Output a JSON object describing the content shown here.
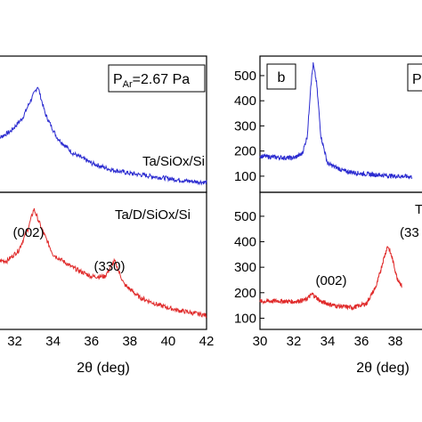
{
  "chart_data": [
    {
      "type": "line",
      "x_label": "2θ (deg)",
      "x_range": [
        31,
        42
      ],
      "x_tick_labels": [
        "32",
        "34",
        "36",
        "38",
        "40",
        "42"
      ],
      "header_box": {
        "main": "P",
        "sub": "Ar",
        "rest": "=2.67 Pa"
      },
      "upper_panel": {
        "series_name": "Ta/SiOx/Si",
        "color": "#2b2bd0",
        "y_range": [
          0,
          1
        ],
        "points": [
          [
            31.0,
            0.38
          ],
          [
            31.8,
            0.45
          ],
          [
            32.4,
            0.55
          ],
          [
            32.8,
            0.68
          ],
          [
            33.2,
            0.8
          ],
          [
            33.6,
            0.58
          ],
          [
            34.2,
            0.4
          ],
          [
            35.0,
            0.28
          ],
          [
            36.0,
            0.2
          ],
          [
            37.0,
            0.15
          ],
          [
            38.0,
            0.12
          ],
          [
            39.0,
            0.1
          ],
          [
            40.0,
            0.08
          ],
          [
            41.0,
            0.06
          ],
          [
            42.0,
            0.05
          ]
        ]
      },
      "lower_panel": {
        "series_name": "Ta/D/SiOx/Si",
        "color": "#e02a2a",
        "y_range": [
          0,
          1
        ],
        "annotations": [
          {
            "text": "(002)"
          },
          {
            "text": "(330)"
          }
        ],
        "points": [
          [
            31.0,
            0.5
          ],
          [
            31.6,
            0.5
          ],
          [
            32.2,
            0.58
          ],
          [
            32.7,
            0.75
          ],
          [
            33.0,
            0.9
          ],
          [
            33.4,
            0.75
          ],
          [
            34.0,
            0.55
          ],
          [
            35.0,
            0.45
          ],
          [
            36.0,
            0.38
          ],
          [
            36.7,
            0.38
          ],
          [
            37.2,
            0.5
          ],
          [
            37.7,
            0.32
          ],
          [
            38.5,
            0.22
          ],
          [
            39.5,
            0.16
          ],
          [
            40.5,
            0.12
          ],
          [
            42.0,
            0.08
          ]
        ]
      }
    },
    {
      "type": "line",
      "x_label": "2θ (deg)",
      "x_range": [
        30,
        40
      ],
      "x_tick_labels": [
        "30",
        "32",
        "34",
        "36",
        "38"
      ],
      "panel_label": "b",
      "header_box": {
        "main": "P"
      },
      "upper_panel": {
        "series_name": "",
        "color": "#2b2bd0",
        "y_range": [
          50,
          560
        ],
        "y_tick_labels": [
          "100",
          "200",
          "300",
          "400",
          "500"
        ],
        "points": [
          [
            30.0,
            180
          ],
          [
            31.0,
            175
          ],
          [
            32.0,
            172
          ],
          [
            32.5,
            190
          ],
          [
            32.8,
            260
          ],
          [
            33.0,
            460
          ],
          [
            33.15,
            545
          ],
          [
            33.35,
            470
          ],
          [
            33.6,
            260
          ],
          [
            34.0,
            150
          ],
          [
            35.0,
            120
          ],
          [
            36.0,
            110
          ],
          [
            37.0,
            105
          ],
          [
            38.0,
            100
          ],
          [
            39.0,
            98
          ]
        ]
      },
      "lower_panel": {
        "series_name": "",
        "cut_label_fragment": "T",
        "color": "#e02a2a",
        "y_range": [
          70,
          580
        ],
        "y_tick_labels": [
          "100",
          "200",
          "300",
          "400",
          "500"
        ],
        "annotations": [
          {
            "text": "(002)"
          },
          {
            "text": "(33"
          }
        ],
        "points": [
          [
            30.0,
            165
          ],
          [
            31.0,
            168
          ],
          [
            32.0,
            165
          ],
          [
            32.7,
            172
          ],
          [
            33.1,
            195
          ],
          [
            33.6,
            165
          ],
          [
            34.5,
            148
          ],
          [
            35.5,
            142
          ],
          [
            36.3,
            158
          ],
          [
            36.9,
            230
          ],
          [
            37.3,
            330
          ],
          [
            37.55,
            385
          ],
          [
            37.8,
            340
          ],
          [
            38.1,
            260
          ],
          [
            38.4,
            225
          ]
        ]
      }
    }
  ]
}
